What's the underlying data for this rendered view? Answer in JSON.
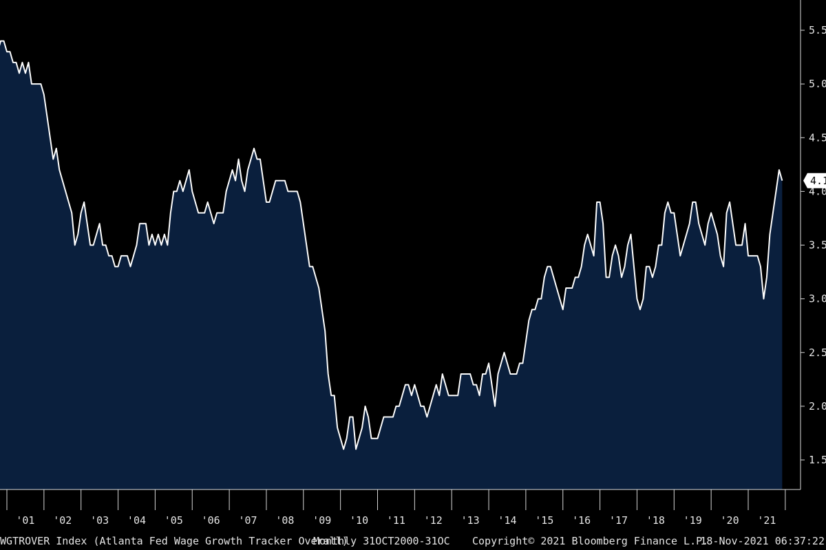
{
  "chart_data": {
    "type": "area",
    "frequency": "Monthly",
    "x_tick_labels": [
      "'01",
      "'02",
      "'03",
      "'04",
      "'05",
      "'06",
      "'07",
      "'08",
      "'09",
      "'10",
      "'11",
      "'12",
      "'13",
      "'14",
      "'15",
      "'16",
      "'17",
      "'18",
      "'19",
      "'20",
      "'21"
    ],
    "y_ticks": [
      1.5,
      2.0,
      2.5,
      3.0,
      3.5,
      4.0,
      4.5,
      5.0,
      5.5
    ],
    "y_tick_labels": [
      "1.5",
      "2.0",
      "2.5",
      "3.0",
      "3.5",
      "4.0",
      "4.5",
      "5.0",
      "5.5"
    ],
    "ylim": [
      1.2,
      5.9
    ],
    "x_start": "2000-10",
    "x_end": "2021-10",
    "last_value_label": "4.1",
    "series": [
      {
        "values": [
          5.3,
          5.4,
          5.4,
          5.3,
          5.3,
          5.2,
          5.2,
          5.1,
          5.2,
          5.1,
          5.2,
          5.0,
          5.0,
          5.0,
          5.0,
          4.9,
          4.7,
          4.5,
          4.3,
          4.4,
          4.2,
          4.1,
          4.0,
          3.9,
          3.8,
          3.5,
          3.6,
          3.8,
          3.9,
          3.7,
          3.5,
          3.5,
          3.6,
          3.7,
          3.5,
          3.5,
          3.4,
          3.4,
          3.3,
          3.3,
          3.4,
          3.4,
          3.4,
          3.3,
          3.4,
          3.5,
          3.7,
          3.7,
          3.7,
          3.5,
          3.6,
          3.5,
          3.6,
          3.5,
          3.6,
          3.5,
          3.8,
          4.0,
          4.0,
          4.1,
          4.0,
          4.1,
          4.2,
          4.0,
          3.9,
          3.8,
          3.8,
          3.8,
          3.9,
          3.8,
          3.7,
          3.8,
          3.8,
          3.8,
          4.0,
          4.1,
          4.2,
          4.1,
          4.3,
          4.1,
          4.0,
          4.2,
          4.3,
          4.4,
          4.3,
          4.3,
          4.1,
          3.9,
          3.9,
          4.0,
          4.1,
          4.1,
          4.1,
          4.1,
          4.0,
          4.0,
          4.0,
          4.0,
          3.9,
          3.7,
          3.5,
          3.3,
          3.3,
          3.2,
          3.1,
          2.9,
          2.7,
          2.3,
          2.1,
          2.1,
          1.8,
          1.7,
          1.6,
          1.7,
          1.9,
          1.9,
          1.6,
          1.7,
          1.8,
          2.0,
          1.9,
          1.7,
          1.7,
          1.7,
          1.8,
          1.9,
          1.9,
          1.9,
          1.9,
          2.0,
          2.0,
          2.1,
          2.2,
          2.2,
          2.1,
          2.2,
          2.1,
          2.0,
          2.0,
          1.9,
          2.0,
          2.1,
          2.2,
          2.1,
          2.3,
          2.2,
          2.1,
          2.1,
          2.1,
          2.1,
          2.3,
          2.3,
          2.3,
          2.3,
          2.2,
          2.2,
          2.1,
          2.3,
          2.3,
          2.4,
          2.2,
          2.0,
          2.3,
          2.4,
          2.5,
          2.4,
          2.3,
          2.3,
          2.3,
          2.4,
          2.4,
          2.6,
          2.8,
          2.9,
          2.9,
          3.0,
          3.0,
          3.2,
          3.3,
          3.3,
          3.2,
          3.1,
          3.0,
          2.9,
          3.1,
          3.1,
          3.1,
          3.2,
          3.2,
          3.3,
          3.5,
          3.6,
          3.5,
          3.4,
          3.9,
          3.9,
          3.7,
          3.2,
          3.2,
          3.4,
          3.5,
          3.4,
          3.2,
          3.3,
          3.5,
          3.6,
          3.3,
          3.0,
          2.9,
          3.0,
          3.3,
          3.3,
          3.2,
          3.3,
          3.5,
          3.5,
          3.8,
          3.9,
          3.8,
          3.8,
          3.6,
          3.4,
          3.5,
          3.6,
          3.7,
          3.9,
          3.9,
          3.7,
          3.6,
          3.5,
          3.7,
          3.8,
          3.7,
          3.6,
          3.4,
          3.3,
          3.8,
          3.9,
          3.7,
          3.5,
          3.5,
          3.5,
          3.7,
          3.4,
          3.4,
          3.4,
          3.4,
          3.3,
          3.0,
          3.2,
          3.6,
          3.8,
          4.0,
          4.2,
          4.1
        ]
      }
    ]
  },
  "footer": {
    "index_text": "WGTROVER Index (Atlanta Fed Wage Growth Tracker Overall)",
    "range_text": "Monthly 31OCT2000-31OC",
    "copyright_text": "Copyright© 2021 Bloomberg Finance L.P.",
    "timestamp_text": "18-Nov-2021 06:37:22"
  },
  "colors": {
    "background": "#000000",
    "area_fill": "#0a1f3d",
    "line": "#ffffff",
    "axis": "#d9d9d9",
    "text": "#e6e6e6",
    "last_label_bg": "#ffffff",
    "last_label_text": "#000000"
  }
}
